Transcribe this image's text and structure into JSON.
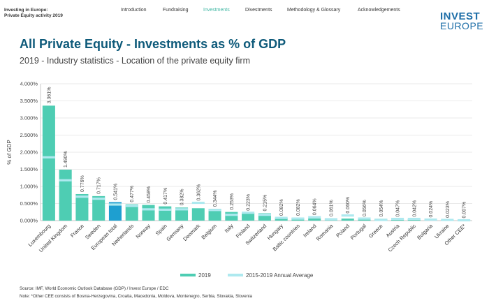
{
  "header": {
    "doc_title_line1": "Investing in Europe:",
    "doc_title_line2": "Private Equity activity 2019",
    "nav": [
      {
        "label": "Introduction",
        "active": false
      },
      {
        "label": "Fundraising",
        "active": false
      },
      {
        "label": "Investments",
        "active": true
      },
      {
        "label": "Divestments",
        "active": false
      },
      {
        "label": "Methodology & Glossary",
        "active": false
      },
      {
        "label": "Acknowledgements",
        "active": false
      }
    ],
    "logo_line1": "INVEST",
    "logo_line2": "EUROPE"
  },
  "main_title": "All Private Equity - Investments as % of GDP",
  "subtitle": "2019 - Industry statistics - Location of the private equity firm",
  "chart_data": {
    "type": "bar",
    "ylabel": "% of GDP",
    "ylim": [
      0,
      4
    ],
    "yticks": [
      "0.000%",
      "0.500%",
      "1.000%",
      "1.500%",
      "2.000%",
      "2.500%",
      "3.000%",
      "3.500%",
      "4.000%"
    ],
    "grid": true,
    "legend_position": "bottom",
    "categories": [
      "Luxembourg",
      "United Kingdom",
      "France",
      "Sweden",
      "European total",
      "Netherlands",
      "Norway",
      "Spain",
      "Germany",
      "Denmark",
      "Belgium",
      "Italy",
      "Finland",
      "Switzerland",
      "Hungary",
      "Baltic countries",
      "Ireland",
      "Romania",
      "Poland",
      "Portugal",
      "Greece",
      "Austria",
      "Czech Republic",
      "Bulgaria",
      "Ukraine",
      "Other CEE*"
    ],
    "series": [
      {
        "name": "2019",
        "values": [
          3.361,
          1.49,
          0.776,
          0.717,
          0.541,
          0.477,
          0.458,
          0.417,
          0.382,
          0.362,
          0.344,
          0.253,
          0.223,
          0.215,
          0.082,
          0.082,
          0.064,
          0.061,
          0.06,
          0.056,
          0.054,
          0.047,
          0.042,
          0.024,
          0.023,
          0.007
        ]
      },
      {
        "name": "2015-2019 Annual Average",
        "values": [
          1.85,
          1.18,
          0.7,
          0.64,
          0.47,
          0.43,
          0.33,
          0.32,
          0.33,
          0.52,
          0.31,
          0.17,
          0.23,
          0.17,
          0.08,
          0.06,
          0.1,
          0.04,
          0.15,
          0.06,
          0.02,
          0.05,
          0.05,
          0.03,
          0.02,
          0.01
        ]
      }
    ],
    "data_labels": [
      "3.361%",
      "1.490%",
      "0.776%",
      "0.717%",
      "0.541%",
      "0.477%",
      "0.458%",
      "0.417%",
      "0.382%",
      "0.362%",
      "0.344%",
      "0.253%",
      "0.223%",
      "0.215%",
      "0.082%",
      "0.082%",
      "0.064%",
      "0.061%",
      "0.060%",
      "0.056%",
      "0.054%",
      "0.047%",
      "0.042%",
      "0.024%",
      "0.023%",
      "0.007%"
    ],
    "highlight_category": "European total",
    "colors": {
      "bar": "#4ecdb3",
      "bar_highlight": "#1e9fd0",
      "average": "#aee9ef",
      "grid": "#e3e3e3"
    }
  },
  "source": "Source: IMF, World Economic Outlook Database (GDP) / Invest Europe / EDC",
  "note": "Note: *Other CEE consists of Bosnia-Herzegovina, Croatia, Macedonia, Moldova, Montenegro, Serbia, Slovakia, Slovenia"
}
